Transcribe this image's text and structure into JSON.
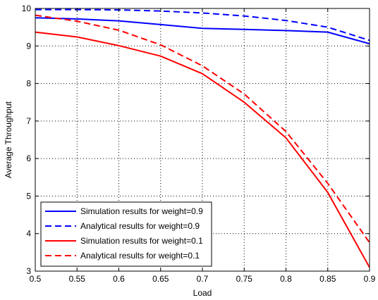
{
  "chart_data": {
    "type": "line",
    "title": "",
    "xlabel": "Load",
    "ylabel": "Average Throughput",
    "xlim": [
      0.5,
      0.9
    ],
    "ylim": [
      3,
      10
    ],
    "xticks": [
      "0.5",
      "0.55",
      "0.6",
      "0.65",
      "0.7",
      "0.75",
      "0.8",
      "0.85",
      "0.9"
    ],
    "yticks": [
      "3",
      "4",
      "5",
      "6",
      "7",
      "8",
      "9",
      "10"
    ],
    "grid": true,
    "legend_position": "bottom-left",
    "x": [
      0.5,
      0.55,
      0.6,
      0.65,
      0.7,
      0.75,
      0.8,
      0.85,
      0.9
    ],
    "series": [
      {
        "name": "Simulation results for weight=0.9",
        "color": "#0000ff",
        "dash": "solid",
        "values": [
          9.75,
          9.72,
          9.67,
          9.57,
          9.47,
          9.44,
          9.41,
          9.37,
          9.06
        ]
      },
      {
        "name": "Analytical results for weight=0.9",
        "color": "#0000ff",
        "dash": "dashed",
        "values": [
          9.97,
          9.97,
          9.96,
          9.93,
          9.88,
          9.8,
          9.68,
          9.5,
          9.15
        ]
      },
      {
        "name": "Simulation results for weight=0.1",
        "color": "#ff0000",
        "dash": "solid",
        "values": [
          9.37,
          9.24,
          9.01,
          8.73,
          8.26,
          7.5,
          6.55,
          5.1,
          3.1
        ]
      },
      {
        "name": "Analytical results for weight=0.1",
        "color": "#ff0000",
        "dash": "dashed",
        "values": [
          9.82,
          9.66,
          9.42,
          9.03,
          8.47,
          7.72,
          6.72,
          5.34,
          3.76
        ]
      }
    ]
  }
}
